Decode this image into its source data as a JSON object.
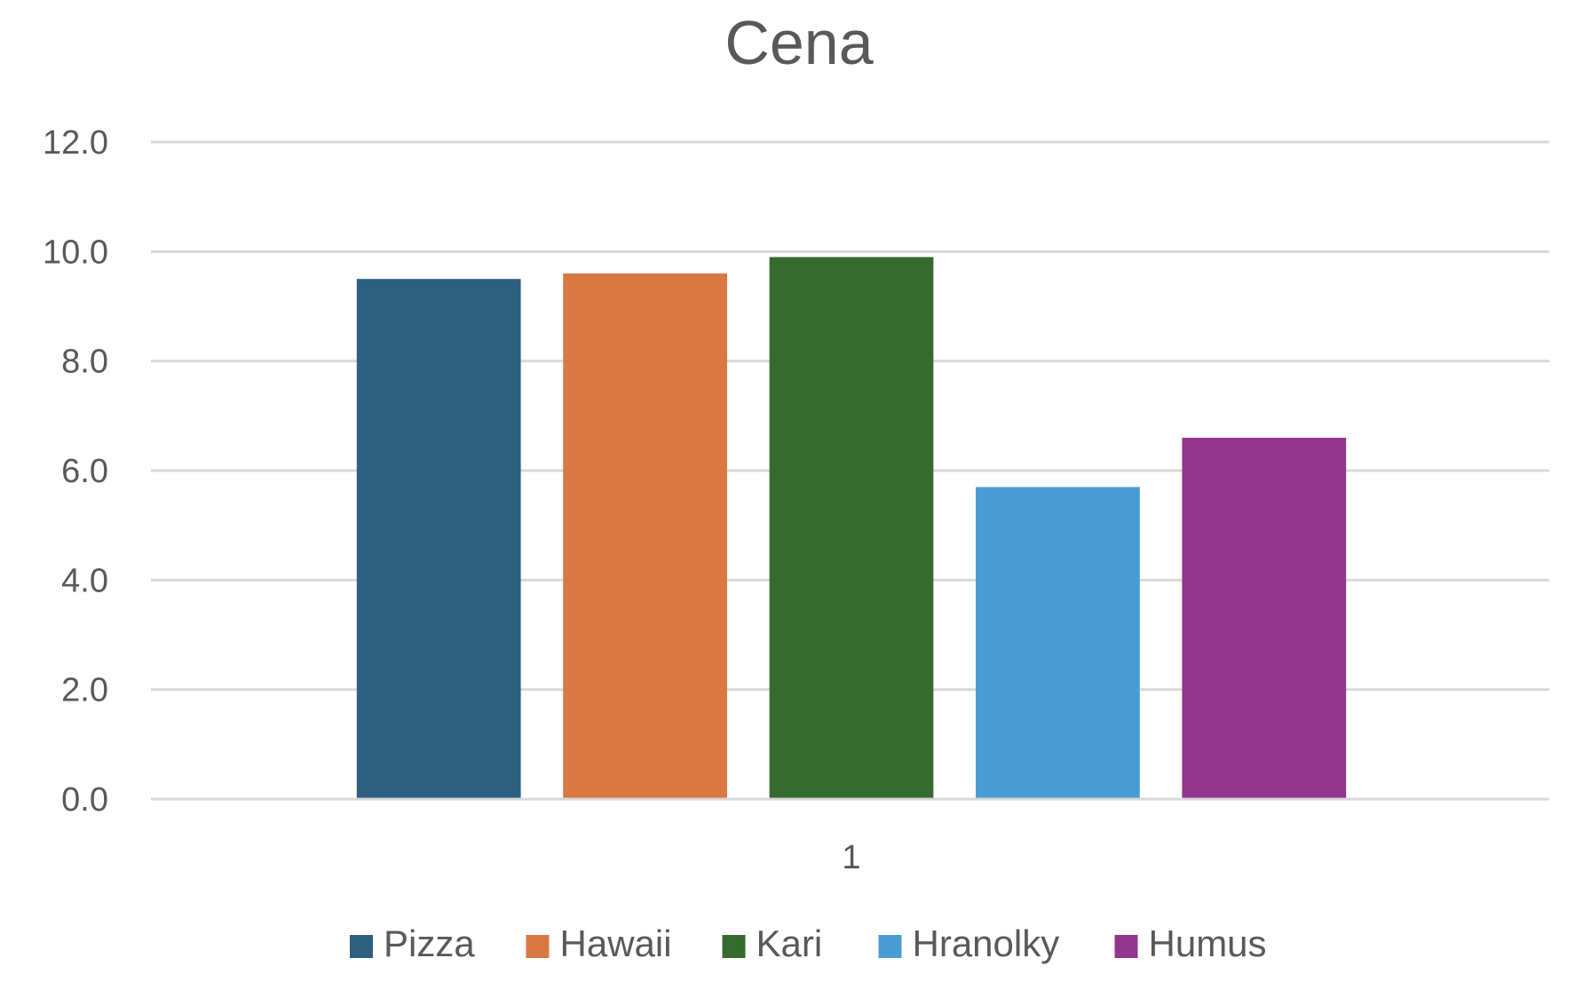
{
  "chart_data": {
    "type": "bar",
    "title": "Cena",
    "xlabel": "",
    "ylabel": "",
    "categories": [
      "1"
    ],
    "ylim": [
      0,
      12
    ],
    "yticks": [
      0,
      2,
      4,
      6,
      8,
      10,
      12
    ],
    "ytick_labels": [
      "0.0",
      "2.0",
      "4.0",
      "6.0",
      "8.0",
      "10.0",
      "12.0"
    ],
    "grid": true,
    "legend_position": "bottom",
    "series": [
      {
        "name": "Pizza",
        "values": [
          9.5
        ],
        "color": "#2E5F7F"
      },
      {
        "name": "Hawaii",
        "values": [
          9.6
        ],
        "color": "#D97842"
      },
      {
        "name": "Kari",
        "values": [
          9.9
        ],
        "color": "#366B2F"
      },
      {
        "name": "Hranolky",
        "values": [
          5.7
        ],
        "color": "#4A9DD3"
      },
      {
        "name": "Humus",
        "values": [
          6.6
        ],
        "color": "#93368C"
      }
    ]
  }
}
